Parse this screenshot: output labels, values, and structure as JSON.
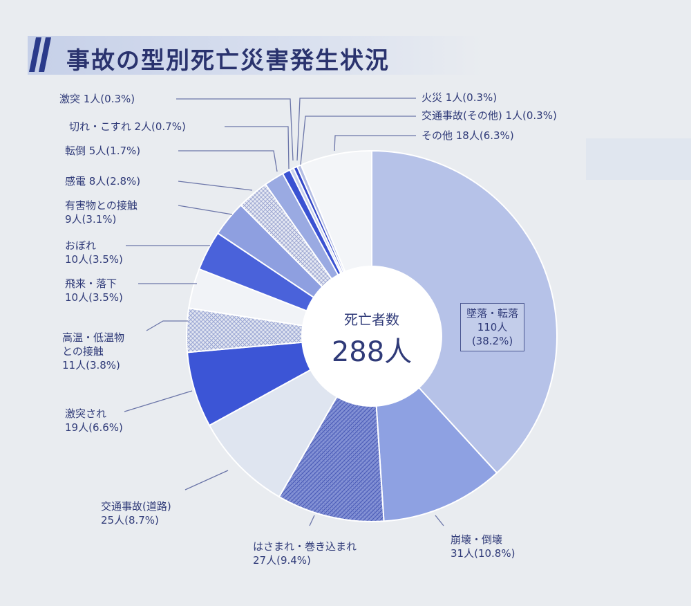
{
  "title": "事故の型別死亡災害発生状況",
  "chart_data": {
    "type": "pie",
    "center_label": "死亡者数",
    "total": "288人",
    "slices": [
      {
        "name": "墜落・転落",
        "count": 110,
        "percent": 38.2,
        "label_count": "110人",
        "label_percent": "(38.2%)",
        "color": "#b6c2e8",
        "pattern": "solid"
      },
      {
        "name": "崩壊・倒壊",
        "count": 31,
        "percent": 10.8,
        "label_count": "31人",
        "label_percent": "(10.8%)",
        "color": "#8ea1e2",
        "pattern": "solid"
      },
      {
        "name": "はさまれ・巻き込まれ",
        "count": 27,
        "percent": 9.4,
        "label_count": "27人",
        "label_percent": "(9.4%)",
        "color": "#7182cc",
        "pattern": "hatch"
      },
      {
        "name": "交通事故(道路)",
        "count": 25,
        "percent": 8.7,
        "label_count": "25人",
        "label_percent": "(8.7%)",
        "color": "#dfe5f0",
        "pattern": "solid"
      },
      {
        "name": "激突され",
        "count": 19,
        "percent": 6.6,
        "label_count": "19人",
        "label_percent": "(6.6%)",
        "color": "#3c55d6",
        "pattern": "solid"
      },
      {
        "name": "高温・低温物との接触",
        "count": 11,
        "percent": 3.8,
        "label_count": "11人",
        "label_percent": "(3.8%)",
        "color": "#c4cde6",
        "pattern": "crosshatch"
      },
      {
        "name": "飛来・落下",
        "count": 10,
        "percent": 3.5,
        "label_count": "10人",
        "label_percent": "(3.5%)",
        "color": "#f1f3f7",
        "pattern": "solid"
      },
      {
        "name": "おぼれ",
        "count": 10,
        "percent": 3.5,
        "label_count": "10人",
        "label_percent": "(3.5%)",
        "color": "#4a62da",
        "pattern": "solid"
      },
      {
        "name": "有害物との接触",
        "count": 9,
        "percent": 3.1,
        "label_count": "9人",
        "label_percent": "(3.1%)",
        "color": "#8e9fe0",
        "pattern": "solid"
      },
      {
        "name": "感電",
        "count": 8,
        "percent": 2.8,
        "label_count": "8人",
        "label_percent": "(2.8%)",
        "color": "#d2d9ec",
        "pattern": "dots"
      },
      {
        "name": "転倒",
        "count": 5,
        "percent": 1.7,
        "label_count": "5人",
        "label_percent": "(1.7%)",
        "color": "#9aaae2",
        "pattern": "solid"
      },
      {
        "name": "切れ・こすれ",
        "count": 2,
        "percent": 0.7,
        "label_count": "2人",
        "label_percent": "(0.7%)",
        "color": "#3a52d2",
        "pattern": "solid"
      },
      {
        "name": "激突",
        "count": 1,
        "percent": 0.3,
        "label_count": "1人",
        "label_percent": "(0.3%)",
        "color": "#c8d1ea",
        "pattern": "solid"
      },
      {
        "name": "火災",
        "count": 1,
        "percent": 0.3,
        "label_count": "1人",
        "label_percent": "(0.3%)",
        "color": "#3448c8",
        "pattern": "solid"
      },
      {
        "name": "交通事故(その他)",
        "count": 1,
        "percent": 0.3,
        "label_count": "1人",
        "label_percent": "(0.3%)",
        "color": "#b3bde4",
        "pattern": "solid"
      },
      {
        "name": "その他",
        "count": 18,
        "percent": 6.3,
        "label_count": "18人",
        "label_percent": "(6.3%)",
        "color": "#f3f5f8",
        "pattern": "solid"
      }
    ],
    "legend_text": {
      "gekitotsu": "激突 1人(0.3%)",
      "kire": "切れ・こすれ 2人(0.7%)",
      "tentou": "転倒 5人(1.7%)",
      "kanden": "感電 8人(2.8%)",
      "yugai_1": "有害物との接触",
      "yugai_2": "9人(3.1%)",
      "obore_1": "おぼれ",
      "obore_2": "10人(3.5%)",
      "hirai_1": "飛来・落下",
      "hirai_2": "10人(3.5%)",
      "kouon_1": "高温・低温物",
      "kouon_2": "との接触",
      "kouon_3": "11人(3.8%)",
      "gekitotsusare_1": "激突され",
      "gekitotsusare_2": "19人(6.6%)",
      "koutsu_1": "交通事故(道路)",
      "koutsu_2": "25人(8.7%)",
      "hasamare_1": "はさまれ・巻き込まれ",
      "hasamare_2": "27人(9.4%)",
      "houkai_1": "崩壊・倒壊",
      "houkai_2": "31人(10.8%)",
      "kasai": "火災 1人(0.3%)",
      "koutsu_other": "交通事故(その他) 1人(0.3%)",
      "sonota": "その他 18人(6.3%)",
      "tsuiraku_1": "墜落・転落",
      "tsuiraku_2": "110人",
      "tsuiraku_3": "(38.2%)"
    }
  }
}
